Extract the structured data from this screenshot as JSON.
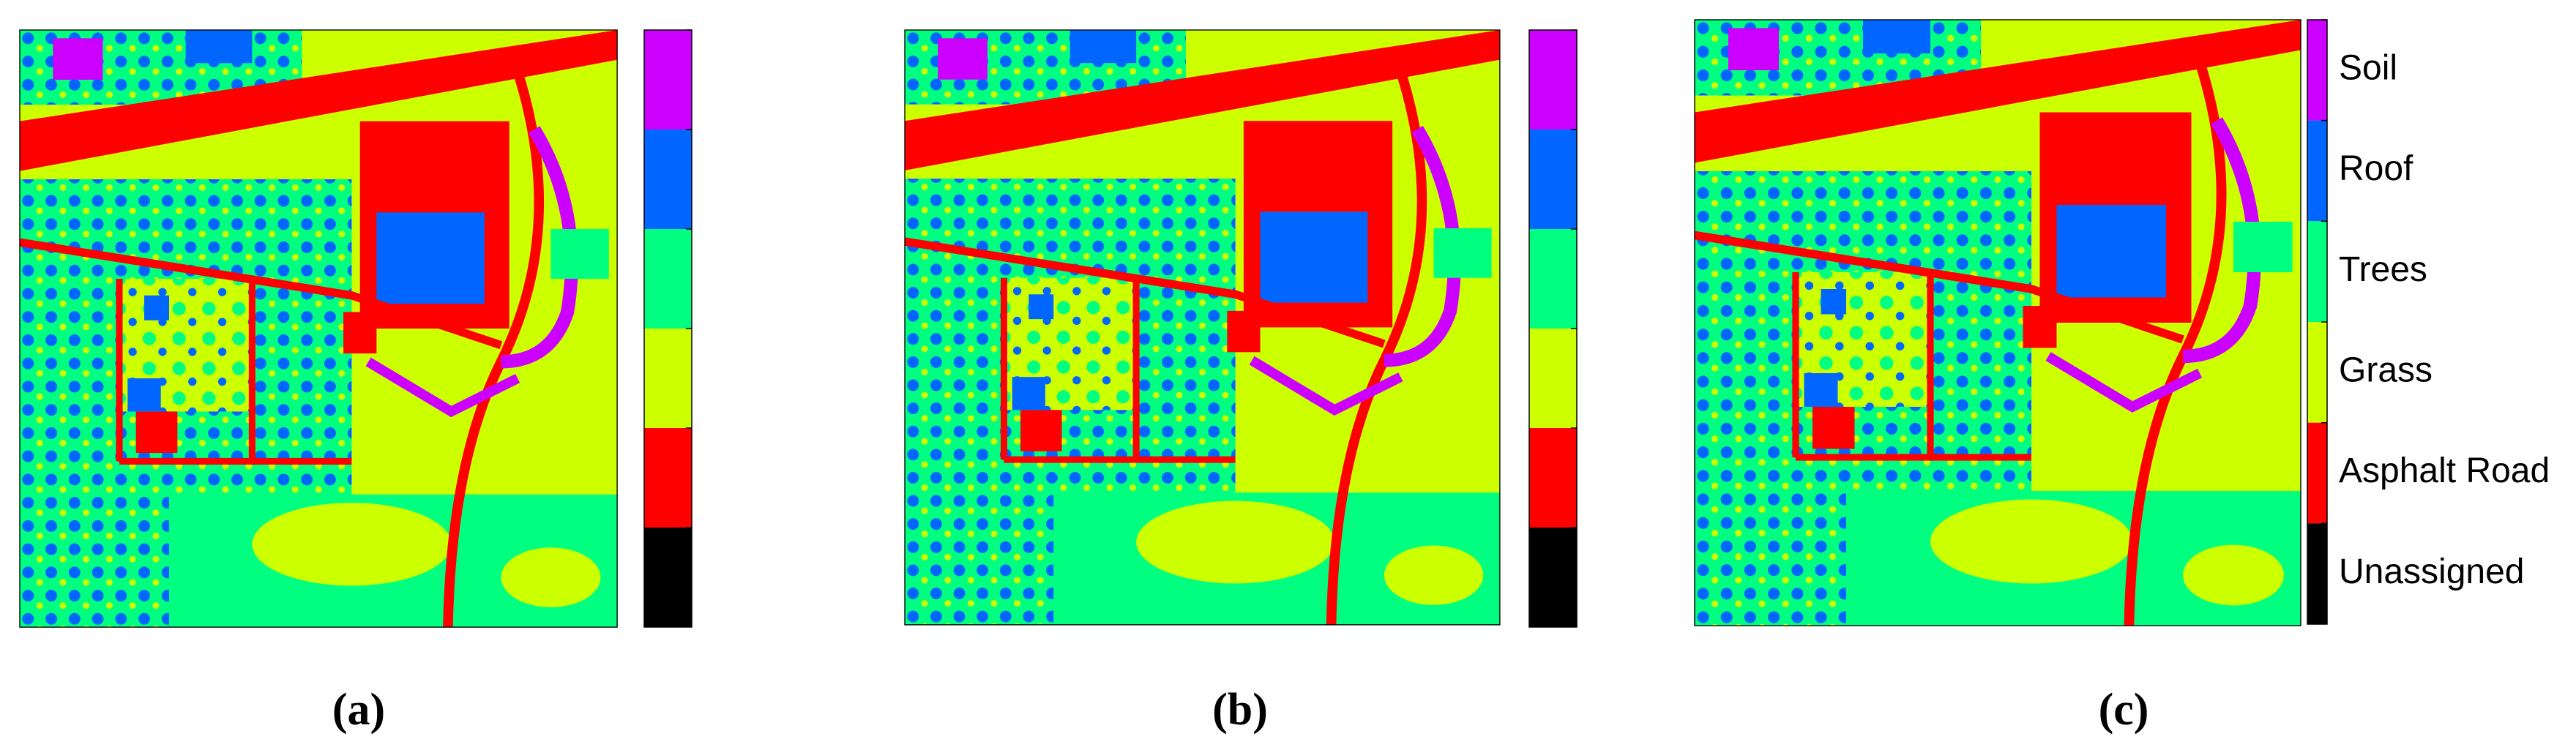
{
  "panels": [
    {
      "caption": "(a)"
    },
    {
      "caption": "(b)"
    },
    {
      "caption": "(c)"
    }
  ],
  "legend": [
    {
      "label": "Soil",
      "color": "#cc00ff"
    },
    {
      "label": "Roof",
      "color": "#0066ff"
    },
    {
      "label": "Trees",
      "color": "#00ff80"
    },
    {
      "label": "Grass",
      "color": "#ccff00"
    },
    {
      "label": "Asphalt Road",
      "color": "#ff0000"
    },
    {
      "label": "Unassigned",
      "color": "#000000"
    }
  ]
}
